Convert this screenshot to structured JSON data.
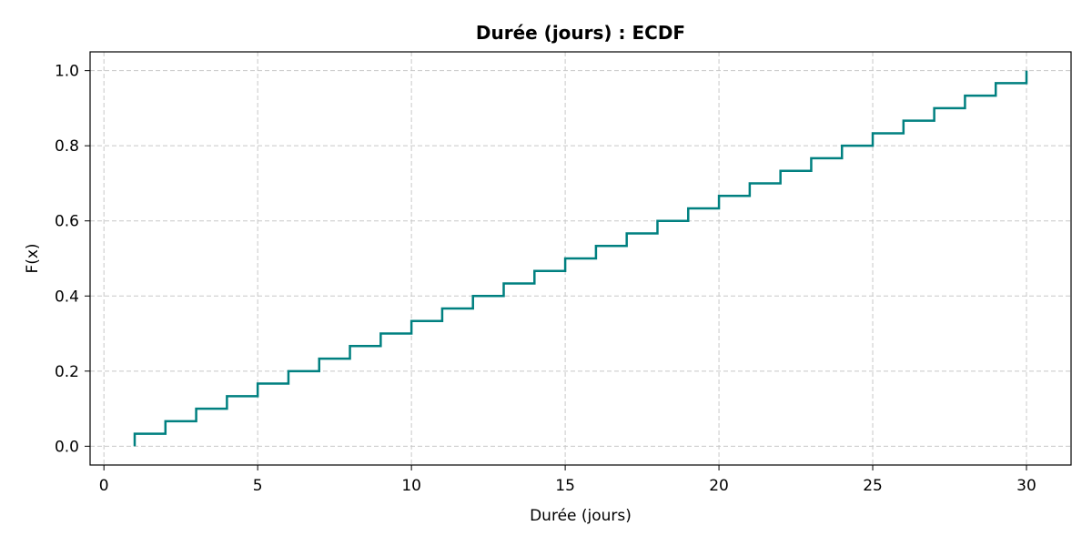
{
  "chart_data": {
    "type": "line",
    "step": true,
    "title": "Durée (jours) : ECDF",
    "xlabel": "Durée (jours)",
    "ylabel": "F(x)",
    "xlim": [
      -0.45,
      31.45
    ],
    "ylim": [
      -0.05,
      1.05
    ],
    "xticks": [
      0,
      5,
      10,
      15,
      20,
      25,
      30
    ],
    "yticks": [
      0.0,
      0.2,
      0.4,
      0.6,
      0.8,
      1.0
    ],
    "xtick_labels": [
      "0",
      "5",
      "10",
      "15",
      "20",
      "25",
      "30"
    ],
    "ytick_labels": [
      "0.0",
      "0.2",
      "0.4",
      "0.6",
      "0.8",
      "1.0"
    ],
    "grid": true,
    "line_color": "#008080",
    "series": [
      {
        "x": [
          1,
          2,
          3,
          4,
          5,
          6,
          7,
          8,
          9,
          10,
          11,
          12,
          13,
          14,
          15,
          16,
          17,
          18,
          19,
          20,
          21,
          22,
          23,
          24,
          25,
          26,
          27,
          28,
          29,
          30
        ],
        "y": [
          0.0333,
          0.0667,
          0.1,
          0.1333,
          0.1667,
          0.2,
          0.2333,
          0.2667,
          0.3,
          0.3333,
          0.3667,
          0.4,
          0.4333,
          0.4667,
          0.5,
          0.5333,
          0.5667,
          0.6,
          0.6333,
          0.6667,
          0.7,
          0.7333,
          0.7667,
          0.8,
          0.8333,
          0.8667,
          0.9,
          0.9333,
          0.9667,
          1.0
        ]
      }
    ]
  }
}
